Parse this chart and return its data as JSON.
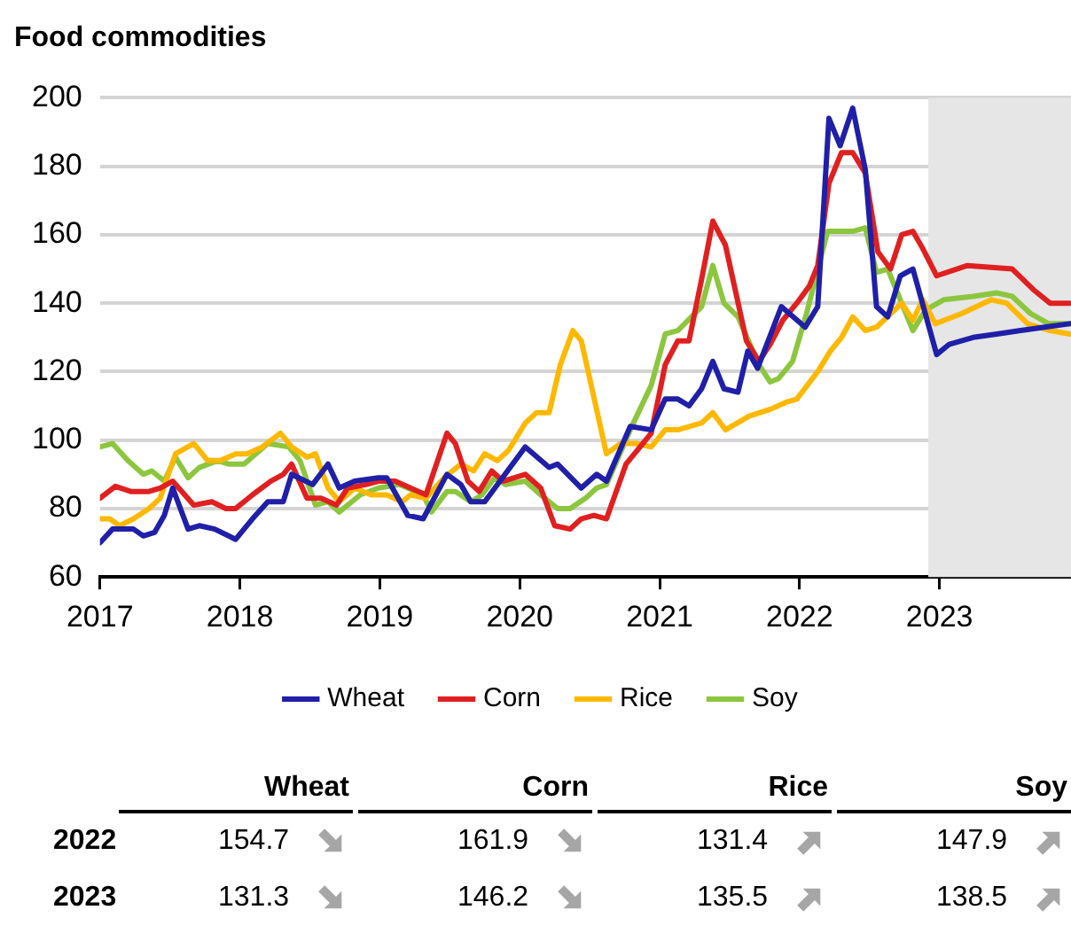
{
  "chart_data": {
    "type": "line",
    "title": "Food commodities",
    "xlim": [
      2017,
      2023.94
    ],
    "xticks": [
      2017,
      2018,
      2019,
      2020,
      2021,
      2022,
      2023
    ],
    "ylim": [
      60,
      200
    ],
    "yticks": [
      60,
      80,
      100,
      120,
      140,
      160,
      180,
      200
    ],
    "grid": "y",
    "legend": "bottom",
    "marker": "none",
    "line_style": "solid",
    "bands": [
      {
        "axis": "x",
        "from": 2022.92,
        "to": 2023.94,
        "color": "#e6e6e6"
      }
    ],
    "series": [
      {
        "name": "Wheat",
        "color": "#1f1fa8",
        "x": [
          2017.0,
          2017.09,
          2017.24,
          2017.31,
          2017.39,
          2017.46,
          2017.52,
          2017.63,
          2017.71,
          2017.82,
          2017.97,
          2018.09,
          2018.2,
          2018.31,
          2018.37,
          2018.52,
          2018.63,
          2018.71,
          2018.82,
          2018.99,
          2019.05,
          2019.2,
          2019.31,
          2019.48,
          2019.58,
          2019.65,
          2019.75,
          2019.84,
          2020.04,
          2020.21,
          2020.27,
          2020.44,
          2020.55,
          2020.62,
          2020.79,
          2020.94,
          2021.04,
          2021.13,
          2021.21,
          2021.3,
          2021.38,
          2021.46,
          2021.56,
          2021.63,
          2021.7,
          2021.87,
          2022.04,
          2022.13,
          2022.21,
          2022.29,
          2022.38,
          2022.47,
          2022.55,
          2022.63,
          2022.72,
          2022.81,
          2022.98,
          2023.07,
          2023.24,
          2023.41,
          2023.58,
          2023.75,
          2023.93
        ],
        "values": [
          70,
          74,
          74,
          72,
          73,
          78,
          86,
          74,
          75,
          74,
          71,
          77,
          82,
          82,
          90,
          87,
          93,
          86,
          88,
          89,
          89,
          78,
          77,
          90,
          87,
          82,
          82,
          87,
          98,
          92,
          93,
          86,
          90,
          88,
          104,
          103,
          112,
          112,
          110,
          115,
          123,
          115,
          114,
          126,
          121,
          139,
          133,
          139,
          194,
          186,
          197,
          179,
          139,
          136,
          148,
          150,
          125,
          128,
          130,
          131,
          132,
          133,
          134
        ]
      },
      {
        "name": "Corn",
        "color": "#e02020",
        "x": [
          2017.0,
          2017.11,
          2017.22,
          2017.35,
          2017.43,
          2017.52,
          2017.67,
          2017.8,
          2017.9,
          2017.97,
          2018.09,
          2018.22,
          2018.31,
          2018.37,
          2018.48,
          2018.58,
          2018.69,
          2018.77,
          2018.9,
          2018.99,
          2019.11,
          2019.33,
          2019.48,
          2019.54,
          2019.63,
          2019.71,
          2019.8,
          2019.88,
          2020.04,
          2020.15,
          2020.25,
          2020.36,
          2020.44,
          2020.53,
          2020.62,
          2020.76,
          2020.94,
          2021.04,
          2021.13,
          2021.21,
          2021.3,
          2021.38,
          2021.47,
          2021.62,
          2021.71,
          2021.79,
          2021.88,
          2021.98,
          2022.07,
          2022.13,
          2022.21,
          2022.3,
          2022.38,
          2022.47,
          2022.56,
          2022.65,
          2022.73,
          2022.81,
          2022.88,
          2022.98,
          2023.2,
          2023.52,
          2023.67,
          2023.79,
          2023.93
        ],
        "values": [
          83,
          86.5,
          85,
          85,
          86,
          88,
          81,
          82,
          80,
          80,
          84,
          88,
          90,
          93,
          83,
          83,
          81,
          86,
          87,
          88,
          88,
          84,
          102,
          99,
          88,
          85,
          91,
          88,
          90,
          86,
          75,
          74,
          77,
          78,
          77,
          93,
          102,
          122,
          129,
          129,
          147,
          164,
          157,
          129,
          123,
          128,
          135,
          140,
          145,
          151,
          175,
          184,
          184,
          178,
          155,
          150,
          160,
          161,
          156,
          148,
          151,
          150,
          144,
          140,
          140
        ]
      },
      {
        "name": "Rice",
        "color": "#ffb800",
        "x": [
          2017.0,
          2017.07,
          2017.14,
          2017.24,
          2017.35,
          2017.43,
          2017.54,
          2017.67,
          2017.77,
          2017.86,
          2017.97,
          2018.05,
          2018.16,
          2018.29,
          2018.37,
          2018.48,
          2018.54,
          2018.63,
          2018.71,
          2018.82,
          2018.94,
          2019.05,
          2019.16,
          2019.22,
          2019.33,
          2019.46,
          2019.58,
          2019.67,
          2019.75,
          2019.84,
          2019.92,
          2020.04,
          2020.12,
          2020.21,
          2020.29,
          2020.38,
          2020.44,
          2020.62,
          2020.72,
          2020.83,
          2020.94,
          2021.04,
          2021.13,
          2021.3,
          2021.38,
          2021.47,
          2021.64,
          2021.79,
          2021.9,
          2021.98,
          2022.13,
          2022.22,
          2022.3,
          2022.38,
          2022.47,
          2022.55,
          2022.73,
          2022.81,
          2022.88,
          2022.97,
          2023.16,
          2023.37,
          2023.48,
          2023.63,
          2023.79,
          2023.93
        ],
        "values": [
          77,
          77,
          75,
          77,
          80,
          83,
          96,
          99,
          94,
          94,
          96,
          96,
          98,
          102,
          98,
          95,
          96,
          86,
          82,
          86,
          84,
          84,
          82,
          84,
          83,
          89,
          93,
          91,
          96,
          94,
          97,
          105,
          108,
          108,
          122,
          132,
          129,
          96,
          99,
          99,
          98,
          103,
          103,
          105,
          108,
          103,
          107,
          109,
          111,
          112,
          120,
          126,
          130,
          136,
          132,
          133,
          140,
          135,
          141,
          134,
          137,
          141,
          140,
          134,
          132,
          131
        ]
      },
      {
        "name": "Soy",
        "color": "#8cc63f",
        "x": [
          2017.0,
          2017.09,
          2017.2,
          2017.31,
          2017.37,
          2017.46,
          2017.54,
          2017.63,
          2017.71,
          2017.84,
          2017.92,
          2018.03,
          2018.2,
          2018.35,
          2018.43,
          2018.54,
          2018.63,
          2018.71,
          2018.86,
          2018.99,
          2019.14,
          2019.2,
          2019.31,
          2019.37,
          2019.48,
          2019.54,
          2019.65,
          2019.73,
          2019.82,
          2019.9,
          2020.04,
          2020.15,
          2020.27,
          2020.36,
          2020.47,
          2020.55,
          2020.62,
          2020.79,
          2020.94,
          2021.04,
          2021.13,
          2021.3,
          2021.38,
          2021.46,
          2021.56,
          2021.71,
          2021.79,
          2021.85,
          2021.95,
          2022.05,
          2022.2,
          2022.38,
          2022.47,
          2022.55,
          2022.63,
          2022.81,
          2022.9,
          2023.03,
          2023.24,
          2023.41,
          2023.52,
          2023.65,
          2023.78,
          2023.93
        ],
        "values": [
          98,
          99,
          94,
          90,
          91,
          88,
          95,
          89,
          92,
          94,
          93,
          93,
          99,
          98,
          94,
          81,
          82,
          79,
          84,
          86,
          87,
          86,
          84,
          79,
          85,
          85,
          82,
          84,
          89,
          87,
          88,
          84,
          80,
          80,
          83,
          86,
          87,
          103,
          116,
          131,
          132,
          139,
          151,
          140,
          136,
          122,
          117,
          118,
          123,
          137,
          161,
          161,
          162,
          149,
          150,
          132,
          138,
          141,
          142,
          143,
          142,
          137,
          134,
          134
        ]
      }
    ],
    "annotations": [
      "2022",
      "154.7",
      "161.9",
      "131.4",
      "147.9",
      "2023",
      "131.3",
      "146.2",
      "135.5",
      "138.5"
    ]
  }
}
